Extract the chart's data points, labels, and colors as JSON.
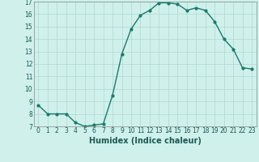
{
  "x": [
    0,
    1,
    2,
    3,
    4,
    5,
    6,
    7,
    8,
    9,
    10,
    11,
    12,
    13,
    14,
    15,
    16,
    17,
    18,
    19,
    20,
    21,
    22,
    23
  ],
  "y": [
    8.7,
    8.0,
    8.0,
    8.0,
    7.3,
    7.0,
    7.1,
    7.2,
    9.5,
    12.8,
    14.8,
    15.9,
    16.3,
    16.9,
    16.9,
    16.8,
    16.3,
    16.5,
    16.3,
    15.4,
    14.0,
    13.2,
    11.7,
    11.6
  ],
  "xlabel": "Humidex (Indice chaleur)",
  "ylim": [
    7,
    17
  ],
  "xlim_min": -0.5,
  "xlim_max": 23.5,
  "yticks": [
    7,
    8,
    9,
    10,
    11,
    12,
    13,
    14,
    15,
    16,
    17
  ],
  "xticks": [
    0,
    1,
    2,
    3,
    4,
    5,
    6,
    7,
    8,
    9,
    10,
    11,
    12,
    13,
    14,
    15,
    16,
    17,
    18,
    19,
    20,
    21,
    22,
    23
  ],
  "line_color": "#1a7a6e",
  "marker": "o",
  "marker_size": 2,
  "bg_color": "#cff0eb",
  "grid_color": "#b0d8d0",
  "line_width": 1.0,
  "tick_fontsize": 5.5,
  "xlabel_fontsize": 7
}
